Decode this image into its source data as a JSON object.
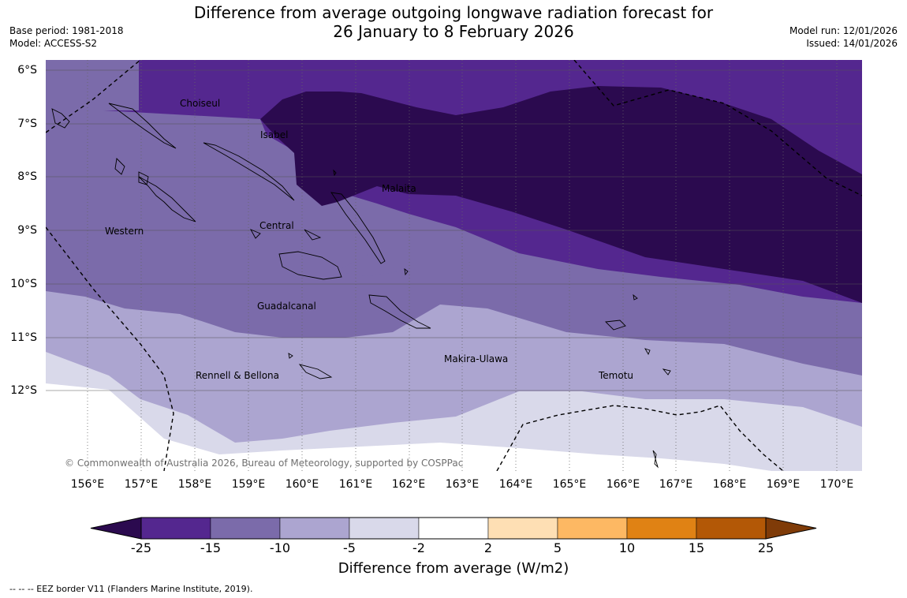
{
  "header": {
    "title_line1": "Difference from average outgoing longwave radiation forecast for",
    "title_line2": "26 January to 8 February 2026",
    "base_period": "Base period: 1981-2018",
    "model": "Model: ACCESS-S2",
    "model_run": "Model run: 12/01/2026",
    "issued": "Issued: 14/01/2026"
  },
  "map": {
    "lat_labels": [
      "6°S",
      "7°S",
      "8°S",
      "9°S",
      "10°S",
      "11°S",
      "12°S"
    ],
    "lon_labels": [
      "156°E",
      "157°E",
      "158°E",
      "159°E",
      "160°E",
      "161°E",
      "162°E",
      "163°E",
      "164°E",
      "165°E",
      "166°E",
      "167°E",
      "168°E",
      "169°E",
      "170°E"
    ],
    "regions": {
      "choiseul": "Choiseul",
      "isabel": "Isabel",
      "malaita": "Malaita",
      "western": "Western",
      "central": "Central",
      "guadalcanal": "Guadalcanal",
      "makira_ulawa": "Makira-Ulawa",
      "rennell_bellona": "Rennell & Bellona",
      "temotu": "Temotu"
    },
    "copyright": "© Commonwealth of Australia 2026, Bureau of Meteorology, supported by COSPPac"
  },
  "colorbar": {
    "ticks": [
      "-25",
      "-15",
      "-10",
      "-5",
      "-2",
      "2",
      "5",
      "10",
      "15",
      "25"
    ],
    "colors": [
      "#2b0a4f",
      "#54278f",
      "#7b6baa",
      "#aca5d0",
      "#d9d9ea",
      "#ffffff",
      "#fedfb4",
      "#fdb863",
      "#e08214",
      "#b35806",
      "#7f3b08"
    ],
    "title": "Difference from average (W/m2)"
  },
  "footer": {
    "eez_note": "--  --  -- EEZ border V11 (Flanders Marine Institute, 2019)."
  }
}
